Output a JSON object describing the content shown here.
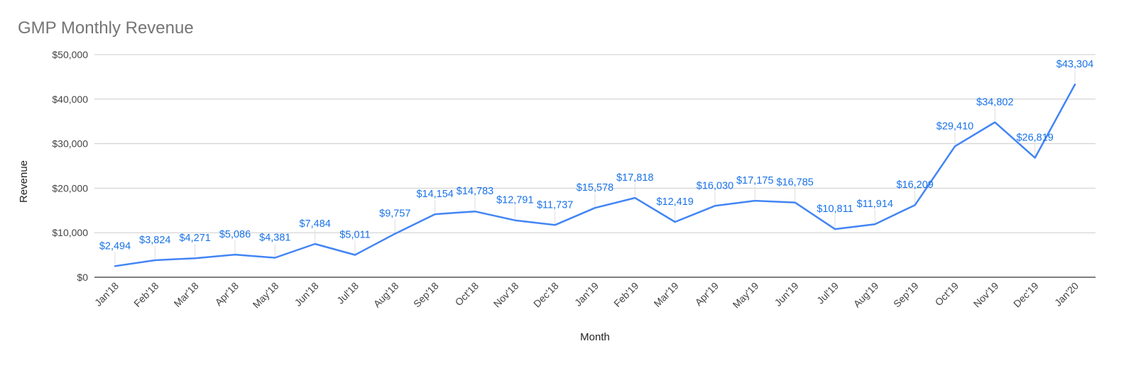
{
  "chart_data": {
    "type": "line",
    "title": "GMP Monthly Revenue",
    "xlabel": "Month",
    "ylabel": "Revenue",
    "ylim": [
      0,
      50000
    ],
    "yticks": [
      0,
      10000,
      20000,
      30000,
      40000,
      50000
    ],
    "ytick_labels": [
      "$0",
      "$10,000",
      "$20,000",
      "$30,000",
      "$40,000",
      "$50,000"
    ],
    "grid": true,
    "categories": [
      "Jan'18",
      "Feb'18",
      "Mar'18",
      "Apr'18",
      "May'18",
      "Jun'18",
      "Jul'18",
      "Aug'18",
      "Sep'18",
      "Oct'18",
      "Nov'18",
      "Dec'18",
      "Jan'19",
      "Feb'19",
      "Mar'19",
      "Apr'19",
      "May'19",
      "Jun'19",
      "Jul'19",
      "Aug'19",
      "Sep'19",
      "Oct'19",
      "Nov'19",
      "Dec'19",
      "Jan'20"
    ],
    "series": [
      {
        "name": "Revenue",
        "color": "#4285f4",
        "label_color": "#1a73e8",
        "values": [
          2494,
          3824,
          4271,
          5086,
          4381,
          7484,
          5011,
          9757,
          14154,
          14783,
          12791,
          11737,
          15578,
          17818,
          12419,
          16030,
          17175,
          16785,
          10811,
          11914,
          16209,
          29410,
          34802,
          26819,
          43304
        ],
        "data_labels": [
          "$2,494",
          "$3,824",
          "$4,271",
          "$5,086",
          "$4,381",
          "$7,484",
          "$5,011",
          "$9,757",
          "$14,154",
          "$14,783",
          "$12,791",
          "$11,737",
          "$15,578",
          "$17,818",
          "$12,419",
          "$16,030",
          "$17,175",
          "$16,785",
          "$10,811",
          "$11,914",
          "$16,209",
          "$29,410",
          "$34,802",
          "$26,819",
          "$43,304"
        ]
      }
    ]
  }
}
